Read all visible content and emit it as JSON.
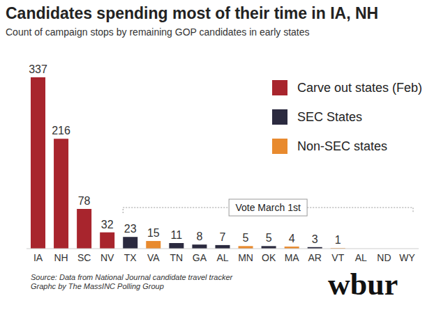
{
  "chart_data": {
    "type": "bar",
    "title": "Candidates spending most of their time in IA, NH",
    "subtitle": "Count of campaign stops by remaining GOP candidates in early states",
    "categories": [
      "IA",
      "NH",
      "SC",
      "NV",
      "TX",
      "VA",
      "TN",
      "GA",
      "AL",
      "MN",
      "OK",
      "MA",
      "AR",
      "VT",
      "AL",
      "ND",
      "WY"
    ],
    "series": [
      {
        "name": "Carve out states (Feb)",
        "color": "#a8252d",
        "values": [
          337,
          216,
          78,
          32,
          null,
          null,
          null,
          null,
          null,
          null,
          null,
          null,
          null,
          null,
          null,
          null,
          null
        ]
      },
      {
        "name": "SEC States",
        "color": "#2b2a3f",
        "values": [
          null,
          null,
          null,
          null,
          23,
          null,
          11,
          8,
          7,
          null,
          5,
          null,
          3,
          null,
          null,
          null,
          null
        ]
      },
      {
        "name": "Non-SEC states",
        "color": "#e88a2e",
        "values": [
          null,
          null,
          null,
          null,
          null,
          15,
          null,
          null,
          null,
          5,
          null,
          4,
          null,
          1,
          0,
          0,
          0
        ]
      }
    ],
    "ylim": [
      0,
      337
    ],
    "data_labels": true,
    "tick_labels": "x",
    "legend": "upper right",
    "annotations": [
      "Vote March 1st"
    ],
    "notes": [
      "Source: Data from National Journal candidate travel tracker",
      "Graphc by The MassINC Polling Group"
    ],
    "logo": "wbur"
  }
}
